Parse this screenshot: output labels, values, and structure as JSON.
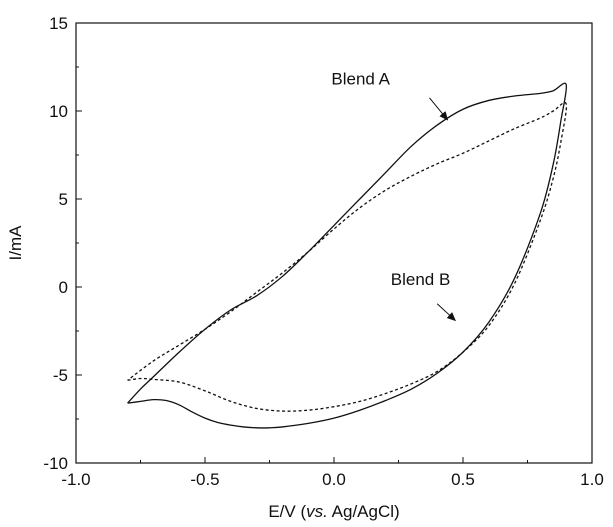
{
  "chart_data": {
    "type": "line",
    "title": "",
    "xlabel_parts": {
      "pre": "E/V (",
      "italic": "vs.",
      "post": " Ag/AgCl)"
    },
    "ylabel": "I/mA",
    "xlim": [
      -1.0,
      1.0
    ],
    "ylim": [
      -10,
      15
    ],
    "x_ticks": [
      -1.0,
      -0.5,
      0.0,
      0.5,
      1.0
    ],
    "x_tick_labels": [
      "-1.0",
      "-0.5",
      "0.0",
      "0.5",
      "1.0"
    ],
    "y_ticks": [
      -10,
      -5,
      0,
      5,
      10,
      15
    ],
    "y_tick_labels": [
      "-10",
      "-5",
      "0",
      "5",
      "10",
      "15"
    ],
    "grid": false,
    "legend": "none",
    "series": [
      {
        "name": "Blend A",
        "style": "solid",
        "color": "#111111",
        "points": [
          [
            -0.8,
            -6.6
          ],
          [
            -0.75,
            -6.5
          ],
          [
            -0.7,
            -6.4
          ],
          [
            -0.65,
            -6.45
          ],
          [
            -0.6,
            -6.7
          ],
          [
            -0.55,
            -7.1
          ],
          [
            -0.5,
            -7.45
          ],
          [
            -0.45,
            -7.7
          ],
          [
            -0.4,
            -7.85
          ],
          [
            -0.35,
            -7.95
          ],
          [
            -0.3,
            -8.0
          ],
          [
            -0.25,
            -8.0
          ],
          [
            -0.2,
            -7.95
          ],
          [
            -0.1,
            -7.75
          ],
          [
            0.0,
            -7.45
          ],
          [
            0.1,
            -7.0
          ],
          [
            0.2,
            -6.45
          ],
          [
            0.3,
            -5.8
          ],
          [
            0.4,
            -4.9
          ],
          [
            0.5,
            -3.7
          ],
          [
            0.6,
            -2.0
          ],
          [
            0.7,
            0.5
          ],
          [
            0.8,
            4.2
          ],
          [
            0.85,
            7.0
          ],
          [
            0.88,
            9.5
          ],
          [
            0.9,
            11.5
          ],
          [
            0.85,
            11.15
          ],
          [
            0.8,
            11.0
          ],
          [
            0.7,
            10.85
          ],
          [
            0.6,
            10.6
          ],
          [
            0.5,
            10.1
          ],
          [
            0.4,
            9.2
          ],
          [
            0.3,
            8.0
          ],
          [
            0.2,
            6.5
          ],
          [
            0.1,
            5.0
          ],
          [
            0.0,
            3.5
          ],
          [
            -0.1,
            2.0
          ],
          [
            -0.2,
            0.6
          ],
          [
            -0.3,
            -0.5
          ],
          [
            -0.4,
            -1.3
          ],
          [
            -0.5,
            -2.4
          ],
          [
            -0.6,
            -3.7
          ],
          [
            -0.7,
            -5.1
          ],
          [
            -0.75,
            -5.8
          ],
          [
            -0.8,
            -6.6
          ]
        ]
      },
      {
        "name": "Blend B",
        "style": "dashed",
        "color": "#111111",
        "points": [
          [
            -0.8,
            -5.3
          ],
          [
            -0.75,
            -5.2
          ],
          [
            -0.7,
            -5.25
          ],
          [
            -0.6,
            -5.4
          ],
          [
            -0.5,
            -5.9
          ],
          [
            -0.4,
            -6.5
          ],
          [
            -0.3,
            -6.9
          ],
          [
            -0.2,
            -7.05
          ],
          [
            -0.1,
            -7.0
          ],
          [
            0.0,
            -6.8
          ],
          [
            0.1,
            -6.5
          ],
          [
            0.2,
            -6.05
          ],
          [
            0.3,
            -5.5
          ],
          [
            0.4,
            -4.8
          ],
          [
            0.5,
            -3.7
          ],
          [
            0.6,
            -2.2
          ],
          [
            0.7,
            0.2
          ],
          [
            0.8,
            3.8
          ],
          [
            0.85,
            6.2
          ],
          [
            0.88,
            8.3
          ],
          [
            0.9,
            10.4
          ],
          [
            0.85,
            10.0
          ],
          [
            0.8,
            9.6
          ],
          [
            0.7,
            9.0
          ],
          [
            0.6,
            8.3
          ],
          [
            0.5,
            7.6
          ],
          [
            0.4,
            7.0
          ],
          [
            0.3,
            6.3
          ],
          [
            0.2,
            5.5
          ],
          [
            0.1,
            4.5
          ],
          [
            0.0,
            3.3
          ],
          [
            -0.1,
            2.0
          ],
          [
            -0.2,
            0.8
          ],
          [
            -0.3,
            -0.3
          ],
          [
            -0.4,
            -1.4
          ],
          [
            -0.5,
            -2.4
          ],
          [
            -0.6,
            -3.3
          ],
          [
            -0.7,
            -4.2
          ],
          [
            -0.8,
            -5.3
          ]
        ]
      }
    ],
    "annotations": [
      {
        "text": "Blend A",
        "text_at": [
          -0.01,
          11.5
        ],
        "arrow_from": [
          0.37,
          10.75
        ],
        "arrow_to": [
          0.44,
          9.5
        ]
      },
      {
        "text": "Blend B",
        "text_at": [
          0.22,
          0.1
        ],
        "arrow_from": [
          0.4,
          -0.95
        ],
        "arrow_to": [
          0.47,
          -1.9
        ]
      }
    ]
  }
}
